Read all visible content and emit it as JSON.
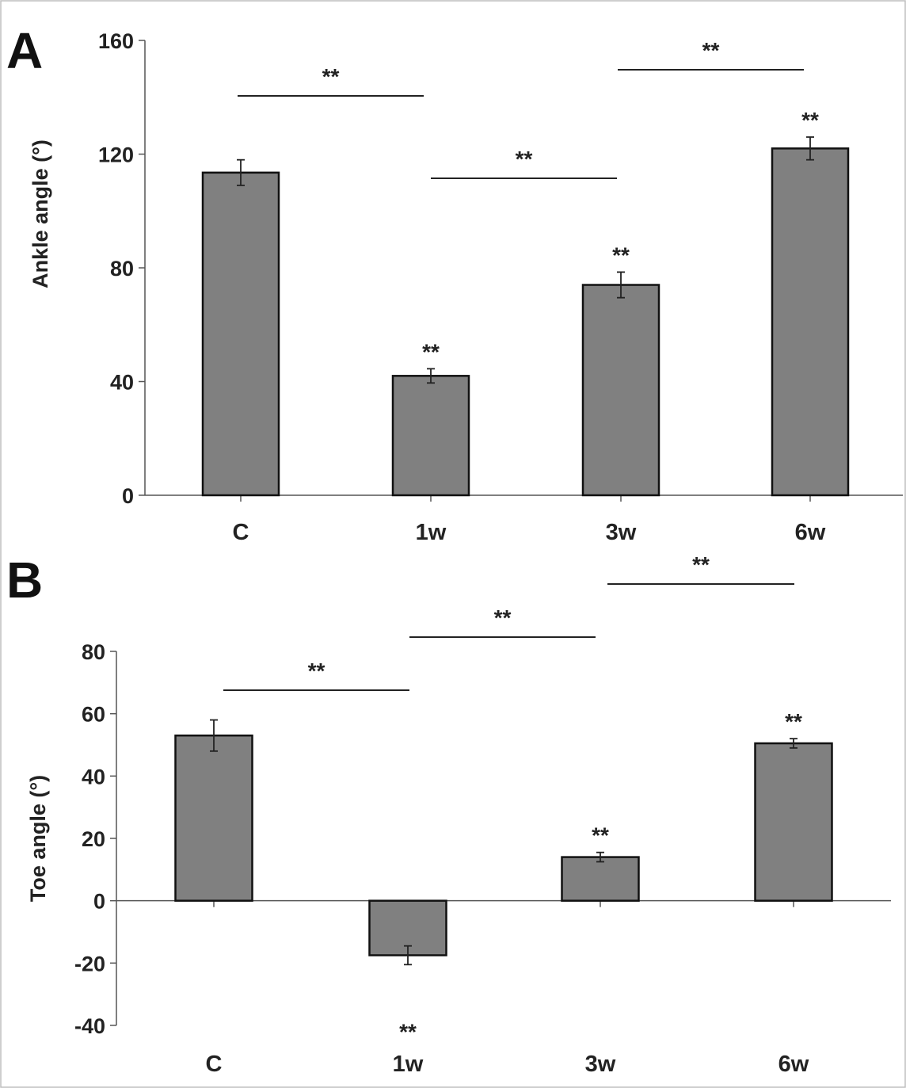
{
  "chart_data": [
    {
      "panel": "A",
      "type": "bar",
      "ylabel": "Ankle angle (°)",
      "categories": [
        "C",
        "1w",
        "3w",
        "6w"
      ],
      "values": [
        113.5,
        42,
        74,
        122
      ],
      "errors": [
        4.5,
        2.5,
        4.5,
        4
      ],
      "ylim": [
        0,
        160
      ],
      "yticks": [
        0,
        40,
        80,
        120,
        160
      ],
      "bar_color": "#808080",
      "annotations": [
        "",
        "**",
        "**",
        "**"
      ],
      "comparisons": [
        {
          "from": "C",
          "to": "1w",
          "label": "**"
        },
        {
          "from": "1w",
          "to": "3w",
          "label": "**"
        },
        {
          "from": "3w",
          "to": "6w",
          "label": "**"
        }
      ]
    },
    {
      "panel": "B",
      "type": "bar",
      "ylabel": "Toe angle (°)",
      "categories": [
        "C",
        "1w",
        "3w",
        "6w"
      ],
      "values": [
        53,
        -17.5,
        14,
        50.5
      ],
      "errors": [
        5,
        3,
        1.5,
        1.5
      ],
      "ylim": [
        -40,
        80
      ],
      "yticks": [
        -40,
        -20,
        0,
        20,
        40,
        60,
        80
      ],
      "bar_color": "#808080",
      "annotations": [
        "",
        "**",
        "**",
        "**"
      ],
      "comparisons": [
        {
          "from": "C",
          "to": "1w",
          "label": "**"
        },
        {
          "from": "1w",
          "to": "3w",
          "label": "**"
        },
        {
          "from": "3w",
          "to": "6w",
          "label": "**"
        }
      ]
    }
  ]
}
